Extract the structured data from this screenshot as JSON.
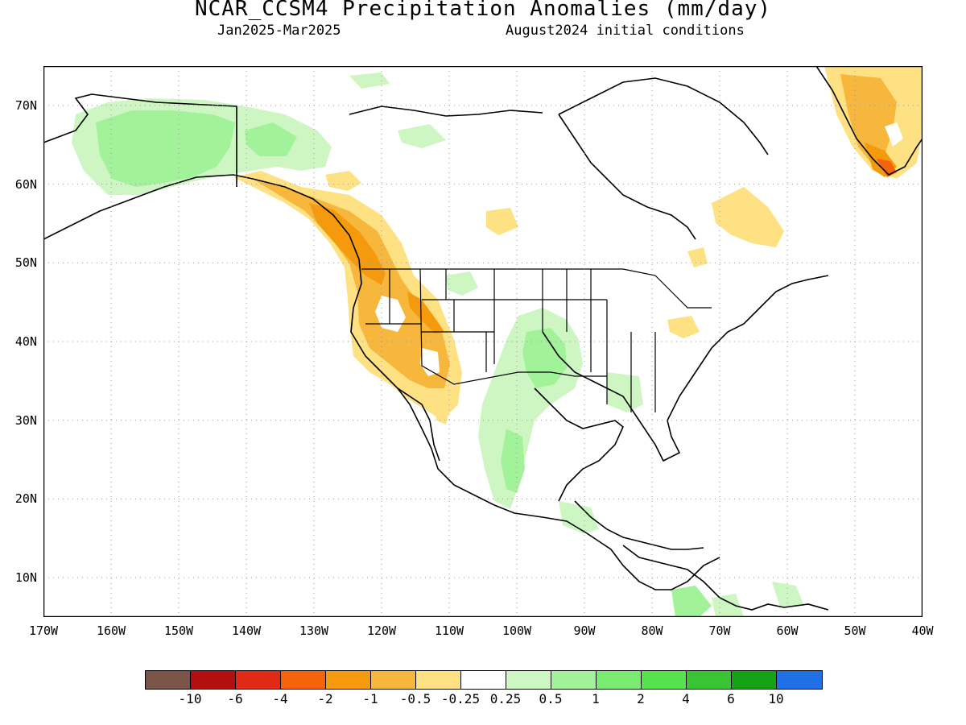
{
  "title": "NCAR_CCSM4 Precipitation Anomalies (mm/day)",
  "period": "Jan2025-Mar2025",
  "init": "August2024 initial conditions",
  "lat_labels": [
    "70N",
    "60N",
    "50N",
    "40N",
    "30N",
    "20N",
    "10N"
  ],
  "lon_labels": [
    "170W",
    "160W",
    "150W",
    "140W",
    "130W",
    "120W",
    "110W",
    "100W",
    "90W",
    "80W",
    "70W",
    "60W",
    "50W",
    "40W"
  ],
  "legend": {
    "colors": [
      "#7b5548",
      "#b40f0f",
      "#e02a16",
      "#f5640d",
      "#f59a0d",
      "#f7b63c",
      "#fde183",
      "#ffffff",
      "#cdf6c2",
      "#a2f29a",
      "#7aec72",
      "#56e24c",
      "#38c433",
      "#16a216",
      "#1f6fe6"
    ],
    "labels": [
      "-10",
      "-6",
      "-4",
      "-2",
      "-1",
      "-0.5",
      "-0.25",
      "0.25",
      "0.5",
      "1",
      "2",
      "4",
      "6",
      "10"
    ]
  },
  "map": {
    "lon_range": [
      -170,
      -40
    ],
    "lat_range": [
      5,
      75
    ],
    "grid_lons": [
      -160,
      -150,
      -140,
      -130,
      -120,
      -110,
      -100,
      -90,
      -80,
      -70,
      -60,
      -50
    ],
    "grid_lats": [
      10,
      20,
      30,
      40,
      50,
      60,
      70
    ]
  }
}
